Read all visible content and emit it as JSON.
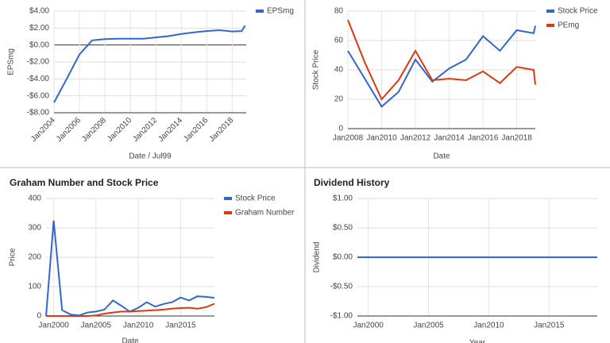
{
  "chart_data": [
    {
      "type": "line",
      "x_label": "Date / Jul99",
      "y_label": "EPSmg",
      "x": [
        2004,
        2005,
        2006,
        2007,
        2008,
        2009,
        2010,
        2011,
        2012,
        2013,
        2014,
        2015,
        2016,
        2017,
        2018,
        2018.75,
        2019
      ],
      "series": [
        {
          "name": "EPSmg",
          "color": "#3366cc",
          "values": [
            -6.8,
            -4,
            -1.1,
            0.55,
            0.7,
            0.75,
            0.75,
            0.75,
            0.9,
            1.05,
            1.3,
            1.5,
            1.65,
            1.75,
            1.6,
            1.65,
            2.3
          ]
        }
      ],
      "xlim": [
        2004,
        2019.1
      ],
      "xticks": [
        {
          "value": 2004,
          "label": "Jan2004"
        },
        {
          "value": 2006,
          "label": "Jan2006"
        },
        {
          "value": 2008,
          "label": "Jan2008"
        },
        {
          "value": 2010,
          "label": "Jan2010"
        },
        {
          "value": 2012,
          "label": "Jan2012"
        },
        {
          "value": 2014,
          "label": "Jan2014"
        },
        {
          "value": 2016,
          "label": "Jan2016"
        },
        {
          "value": 2018,
          "label": "Jan2018"
        }
      ],
      "ylim": [
        -8,
        4
      ],
      "yticks": [
        {
          "value": 4,
          "label": "$4.00"
        },
        {
          "value": 2,
          "label": "$2.00"
        },
        {
          "value": 0,
          "label": "$0.00"
        },
        {
          "value": -2,
          "label": "-$2.00"
        },
        {
          "value": -4,
          "label": "-$4.00"
        },
        {
          "value": -6,
          "label": "-$6.00"
        },
        {
          "value": -8,
          "label": "-$8.00"
        }
      ],
      "grid": true,
      "legend": "right"
    },
    {
      "type": "line",
      "x_label": "Date",
      "y_label": "Stock Price",
      "x": [
        2008,
        2009,
        2010,
        2011,
        2012,
        2013,
        2014,
        2015,
        2016,
        2017,
        2018,
        2019,
        2019.1
      ],
      "series": [
        {
          "name": "Stock Price",
          "color": "#3366cc",
          "values": [
            53,
            34,
            15,
            25,
            47,
            32,
            41,
            47,
            63,
            53,
            67,
            65,
            70
          ]
        },
        {
          "name": "PEmg",
          "color": "#dc3912",
          "values": [
            74,
            45,
            20,
            33,
            53,
            33,
            34,
            33,
            39,
            31,
            42,
            40,
            30
          ]
        }
      ],
      "xlim": [
        2008,
        2019.1
      ],
      "xticks": [
        {
          "value": 2008,
          "label": "Jan2008"
        },
        {
          "value": 2010,
          "label": "Jan2010"
        },
        {
          "value": 2012,
          "label": "Jan2012"
        },
        {
          "value": 2014,
          "label": "Jan2014"
        },
        {
          "value": 2016,
          "label": "Jan2016"
        },
        {
          "value": 2018,
          "label": "Jan2018"
        }
      ],
      "ylim": [
        0,
        80
      ],
      "yticks": [
        0,
        20,
        40,
        60,
        80
      ],
      "grid": true,
      "legend": "right"
    },
    {
      "type": "line",
      "title": "Graham Number and Stock Price",
      "x_label": "Date",
      "y_label": "Price",
      "x": [
        1999.1,
        2000,
        2001,
        2002,
        2003,
        2004,
        2005,
        2006,
        2007,
        2008,
        2009,
        2010,
        2011,
        2012,
        2013,
        2014,
        2015,
        2016,
        2017,
        2018,
        2019
      ],
      "series": [
        {
          "name": "Stock Price",
          "color": "#3366cc",
          "values": [
            0,
            325,
            20,
            5,
            2,
            12,
            15,
            22,
            53,
            35,
            15,
            28,
            47,
            32,
            41,
            47,
            63,
            53,
            67,
            65,
            62
          ]
        },
        {
          "name": "Graham Number",
          "color": "#dc3912",
          "values": [
            0,
            0,
            0,
            0,
            0,
            0,
            2,
            8,
            12,
            15,
            15,
            17,
            18,
            20,
            22,
            25,
            27,
            28,
            25,
            30,
            42
          ]
        }
      ],
      "xlim": [
        1999.1,
        2019
      ],
      "xticks": [
        {
          "value": 2000,
          "label": "Jan2000"
        },
        {
          "value": 2005,
          "label": "Jan2005"
        },
        {
          "value": 2010,
          "label": "Jan2010"
        },
        {
          "value": 2015,
          "label": "Jan2015"
        }
      ],
      "ylim": [
        0,
        400
      ],
      "yticks": [
        0,
        100,
        200,
        300,
        400
      ],
      "grid": true,
      "legend": "right"
    },
    {
      "type": "line",
      "title": "Dividend History",
      "x_label": "Year",
      "y_label": "Dividend",
      "x": [
        1999.1,
        2019
      ],
      "series": [
        {
          "color": "#3366cc",
          "values": [
            0,
            0
          ]
        }
      ],
      "xlim": [
        1999.1,
        2019
      ],
      "xticks": [
        {
          "value": 2000,
          "label": "Jan2000"
        },
        {
          "value": 2005,
          "label": "Jan2005"
        },
        {
          "value": 2010,
          "label": "Jan2010"
        },
        {
          "value": 2015,
          "label": "Jan2015"
        }
      ],
      "ylim": [
        -1,
        1
      ],
      "yticks": [
        {
          "value": 1,
          "label": "$1.00"
        },
        {
          "value": 0.5,
          "label": "$0.50"
        },
        {
          "value": 0,
          "label": "$0.00"
        },
        {
          "value": -0.5,
          "label": "-$0.50"
        },
        {
          "value": -1,
          "label": "-$1.00"
        }
      ],
      "grid": true
    }
  ]
}
